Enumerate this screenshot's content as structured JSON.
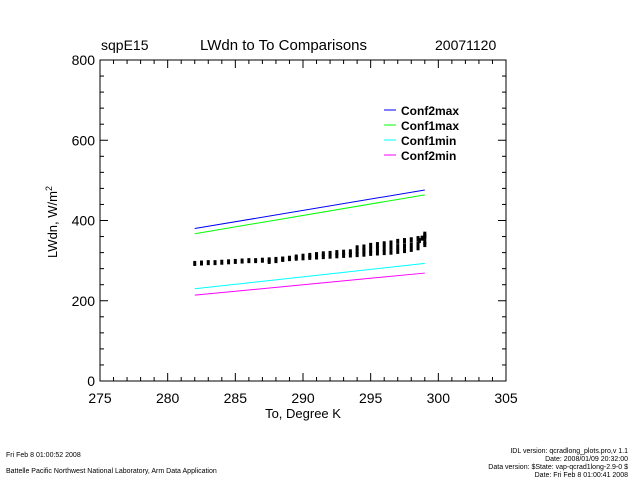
{
  "header": {
    "site": "sqpE15",
    "title": "LWdn to To Comparisons",
    "date": "20071120"
  },
  "footer": {
    "timestamp": "Fri Feb  8 01:00:52 2008",
    "institution": "Battelle Pacific Northwest National Laboratory, Arm Data Application",
    "idl_version": "IDL version: qcradlong_plots.pro,v 1.1",
    "idl_date": "Date: 2008/01/09 20:32:00",
    "data_version": "Data version: $State: vap-qcrad1long-2.9-0 $",
    "data_date": "Date: Fri Feb  8 01:00:41 2008"
  },
  "colors": {
    "conf2max": "#0000ff",
    "conf1max": "#00ff00",
    "conf1min": "#00ffff",
    "conf2min": "#ff00ff",
    "observed": "#000000"
  },
  "chart_data": {
    "type": "scatter",
    "xlabel": "To, Degree K",
    "ylabel": "LWdn, W/m",
    "ylabel_sup": "2",
    "xlim": [
      275,
      305
    ],
    "ylim": [
      0,
      800
    ],
    "xticks": [
      275,
      280,
      285,
      290,
      295,
      300,
      305
    ],
    "yticks": [
      0,
      200,
      400,
      600,
      800
    ],
    "legend_position": "top-right",
    "grid": false,
    "series": [
      {
        "name": "Conf2max",
        "color": "#0000ff",
        "kind": "line",
        "x": [
          282,
          299
        ],
        "y": [
          380,
          476
        ]
      },
      {
        "name": "Conf1max",
        "color": "#00ff00",
        "kind": "line",
        "x": [
          282,
          299
        ],
        "y": [
          367,
          464
        ]
      },
      {
        "name": "Conf1min",
        "color": "#00ffff",
        "kind": "line",
        "x": [
          282,
          299
        ],
        "y": [
          230,
          293
        ]
      },
      {
        "name": "Conf2min",
        "color": "#ff00ff",
        "kind": "line",
        "x": [
          282,
          299
        ],
        "y": [
          214,
          269
        ]
      }
    ],
    "observed": {
      "color": "#000000",
      "x": [
        282.0,
        282.5,
        283.0,
        283.5,
        284.0,
        284.5,
        285.0,
        285.5,
        286.0,
        286.5,
        287.0,
        287.5,
        288.0,
        288.5,
        289.0,
        289.5,
        290.0,
        290.5,
        291.0,
        291.5,
        292.0,
        292.5,
        293.0,
        293.5,
        294.0,
        294.5,
        295.0,
        295.5,
        296.0,
        296.5,
        297.0,
        297.5,
        298.0,
        298.5,
        299.0,
        287.5,
        288.0,
        288.5,
        289.0,
        289.5,
        290.0,
        290.5,
        291.0,
        291.5,
        292.0,
        292.5,
        293.0,
        293.5,
        294.0,
        294.5,
        295.0,
        295.5,
        296.0,
        296.5,
        297.0,
        297.5,
        298.0,
        298.5,
        299.0,
        294.0,
        294.5,
        295.0,
        295.5,
        296.0,
        296.5,
        297.0,
        297.5,
        298.0,
        298.5,
        299.0,
        299.0,
        299.0,
        298.8,
        298.6
      ],
      "y": [
        293,
        294,
        295,
        295,
        296,
        297,
        298,
        299,
        300,
        300,
        301,
        302,
        303,
        304,
        305,
        306,
        307,
        308,
        309,
        310,
        311,
        312,
        313,
        314,
        315,
        316,
        318,
        319,
        320,
        321,
        323,
        325,
        328,
        332,
        340,
        298,
        300,
        303,
        306,
        309,
        311,
        313,
        315,
        317,
        318,
        320,
        321,
        322,
        323,
        325,
        327,
        329,
        331,
        333,
        335,
        337,
        339,
        342,
        346,
        332,
        334,
        338,
        340,
        342,
        344,
        348,
        350,
        352,
        355,
        358,
        362,
        366,
        356,
        350
      ]
    }
  }
}
